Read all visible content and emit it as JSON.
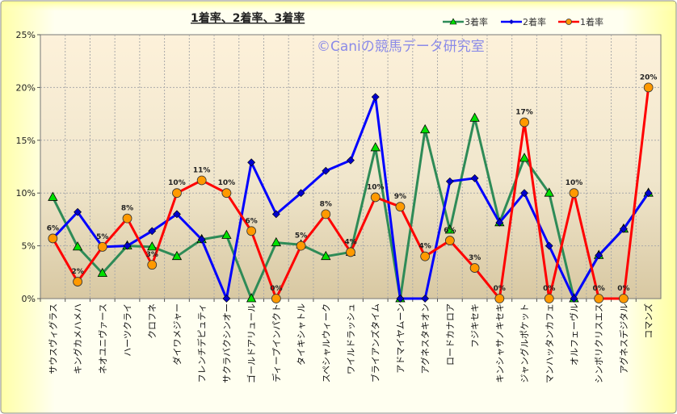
{
  "chart_data": {
    "type": "line",
    "title": "1着率、2着率、3着率",
    "watermark": "©Caniの競馬データ研究室",
    "xlabel": "",
    "ylabel": "",
    "ylim": [
      0,
      25
    ],
    "yticks": [
      "0%",
      "5%",
      "10%",
      "15%",
      "20%",
      "25%"
    ],
    "grid": true,
    "legend_position": "top-right",
    "categories": [
      "サウスヴィグラス",
      "キングカメハメハ",
      "ネオユニヴァース",
      "ハーツクライ",
      "クロフネ",
      "ダイワメジャー",
      "フレンチデピュティ",
      "サクラバクシンオー",
      "ゴールドアリュール",
      "ディープインパクト",
      "タイキシャトル",
      "スペシャルウィーク",
      "ワイルドラッシュ",
      "ブライアンズタイム",
      "アドマイヤムーン",
      "アグネスタキオン",
      "ロードカナロア",
      "フジキセキ",
      "キンシャサノキセキ",
      "ジャングルポケット",
      "マンハッタンカフェ",
      "オルフェーヴル",
      "シンボリクリスエス",
      "アグネスデジタル",
      "コマンズ"
    ],
    "series": [
      {
        "name": "3着率",
        "color": "#2e8b57",
        "marker": "triangle",
        "marker_color": "#00e000",
        "values": [
          9.6,
          4.9,
          2.4,
          5.0,
          4.9,
          4.0,
          5.6,
          6.0,
          0,
          5.3,
          5.1,
          4.0,
          4.4,
          14.3,
          0,
          16.0,
          6.5,
          17.1,
          7.2,
          13.3,
          10.0,
          0,
          4.1,
          6.6,
          10.0
        ]
      },
      {
        "name": "2着率",
        "color": "#0000ff",
        "marker": "diamond",
        "marker_color": "#0000cc",
        "values": [
          5.7,
          8.2,
          4.9,
          5.0,
          6.4,
          8.0,
          5.6,
          0,
          12.9,
          8.0,
          10.0,
          12.1,
          13.1,
          19.1,
          0,
          0,
          11.1,
          11.4,
          7.2,
          10.0,
          5.0,
          0,
          4.1,
          6.6,
          10.0
        ]
      },
      {
        "name": "1着率",
        "color": "#ff0000",
        "marker": "circle",
        "marker_color": "#ff9900",
        "values": [
          5.7,
          1.6,
          4.9,
          7.6,
          3.2,
          10.0,
          11.2,
          10.0,
          6.4,
          0,
          5.0,
          8.0,
          4.4,
          9.6,
          8.7,
          4.0,
          5.5,
          2.9,
          0,
          16.7,
          0,
          10.0,
          0,
          0,
          20.0
        ],
        "labels": [
          "6%",
          "2%",
          "5%",
          "8%",
          "3%",
          "10%",
          "11%",
          "10%",
          "6%",
          "0%",
          "5%",
          "8%",
          "4%",
          "10%",
          "9%",
          "4%",
          "6%",
          "3%",
          "0%",
          "17%",
          "0%",
          "10%",
          "0%",
          "0%",
          "20%"
        ]
      }
    ]
  }
}
